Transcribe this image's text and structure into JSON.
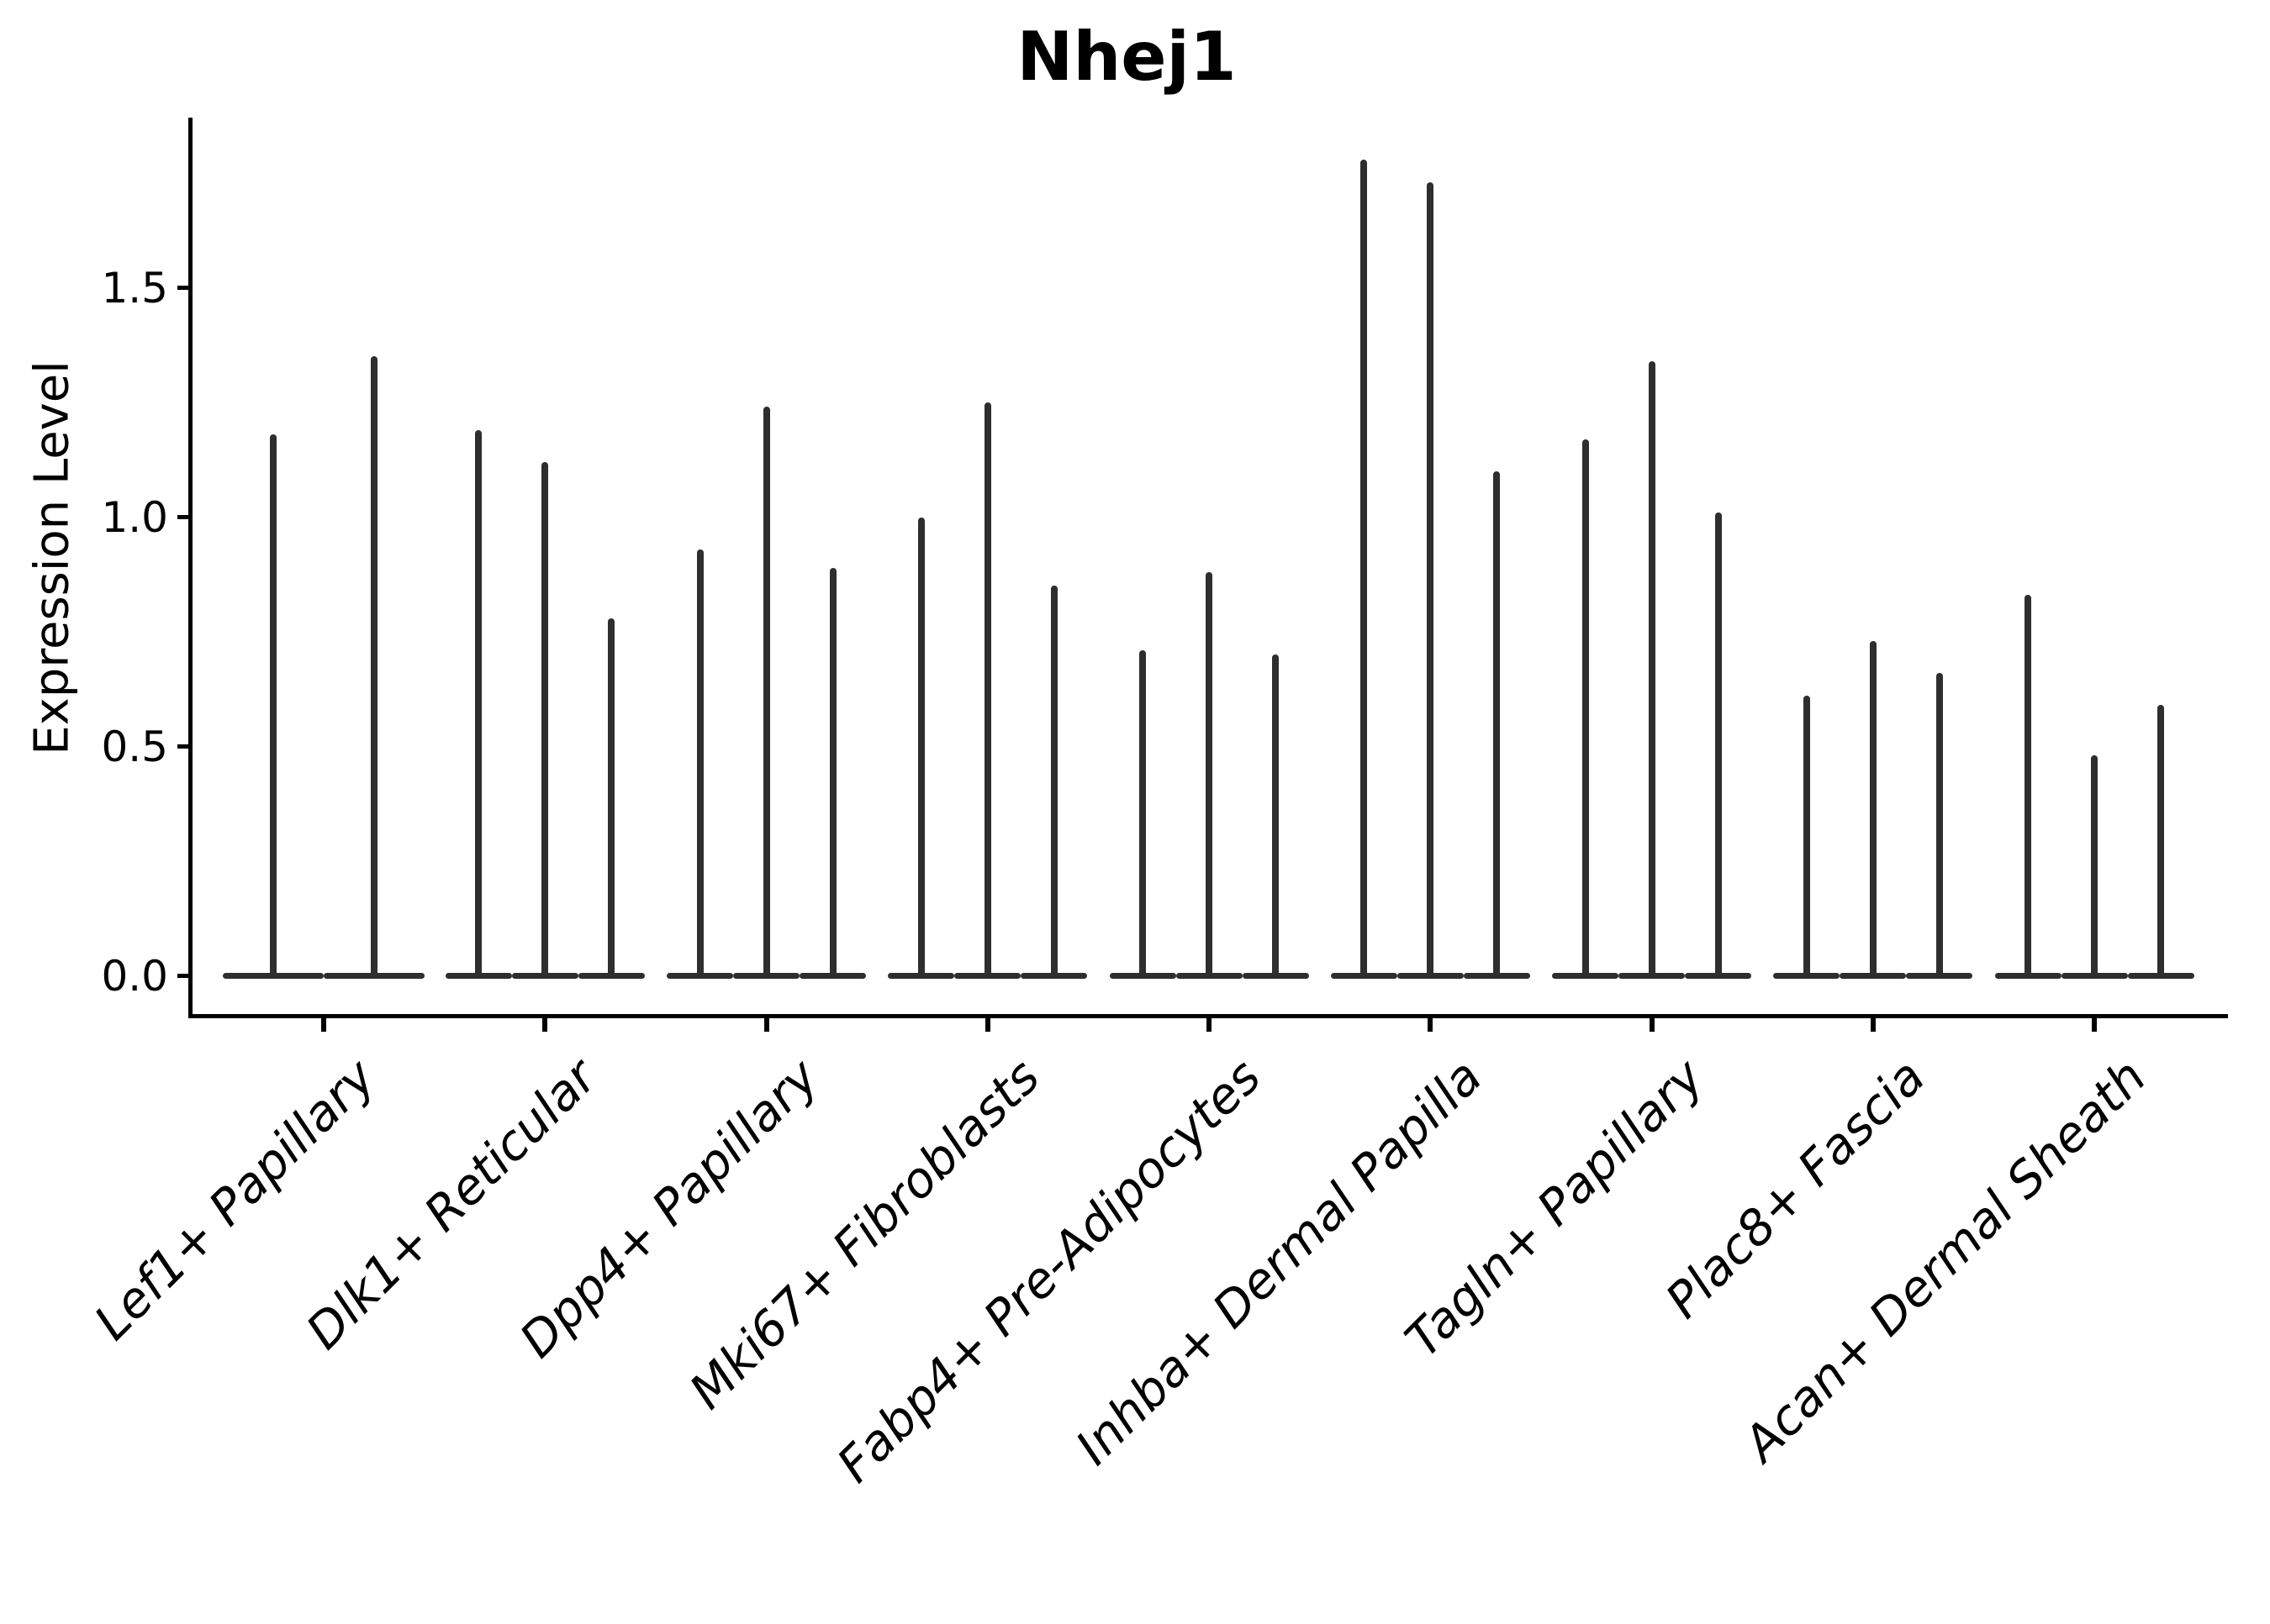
{
  "title": "Nhej1",
  "y_axis": {
    "label": "Expression Level",
    "tick_labels": [
      "0.0",
      "0.5",
      "1.0",
      "1.5"
    ]
  },
  "colors": {
    "violin": "#2e2e2e",
    "axis": "#000000",
    "background": "#ffffff"
  },
  "chart_data": {
    "type": "violin",
    "title": "Nhej1",
    "xlabel": "",
    "ylabel": "Expression Level",
    "ylim": [
      0,
      1.87
    ],
    "yticks": [
      0.0,
      0.5,
      1.0,
      1.5
    ],
    "grid": false,
    "legend": "none",
    "description": "Narrow spike-shaped violins (sparse expression, bulk of cells at 0) with a flat base at y=0; one group of violins per cell-type category",
    "categories": [
      "Lef1+ Papillary",
      "Dlk1+ Reticular",
      "Dpp4+ Papillary",
      "Mki67+ Fibroblasts",
      "Fabp4+ Pre-Adipocytes",
      "Inhba+ Dermal Papilla",
      "Tagln+ Papillary",
      "Plac8+ Fascia",
      "Acan+ Dermal Sheath"
    ],
    "series": [
      {
        "category": "Lef1+ Papillary",
        "violin_max_values": [
          1.18,
          1.35
        ]
      },
      {
        "category": "Dlk1+ Reticular",
        "violin_max_values": [
          1.19,
          1.12,
          0.78
        ]
      },
      {
        "category": "Dpp4+ Papillary",
        "violin_max_values": [
          0.93,
          1.24,
          0.89
        ]
      },
      {
        "category": "Mki67+ Fibroblasts",
        "violin_max_values": [
          1.0,
          1.25,
          0.85
        ]
      },
      {
        "category": "Fabp4+ Pre-Adipocytes",
        "violin_max_values": [
          0.71,
          0.88,
          0.7
        ]
      },
      {
        "category": "Inhba+ Dermal Papilla",
        "violin_max_values": [
          1.78,
          1.73,
          1.1
        ]
      },
      {
        "category": "Tagln+ Papillary",
        "violin_max_values": [
          1.17,
          1.34,
          1.01
        ]
      },
      {
        "category": "Plac8+ Fascia",
        "violin_max_values": [
          0.61,
          0.73,
          0.66
        ]
      },
      {
        "category": "Acan+ Dermal Sheath",
        "violin_max_values": [
          0.83,
          0.48,
          0.59
        ]
      }
    ]
  }
}
